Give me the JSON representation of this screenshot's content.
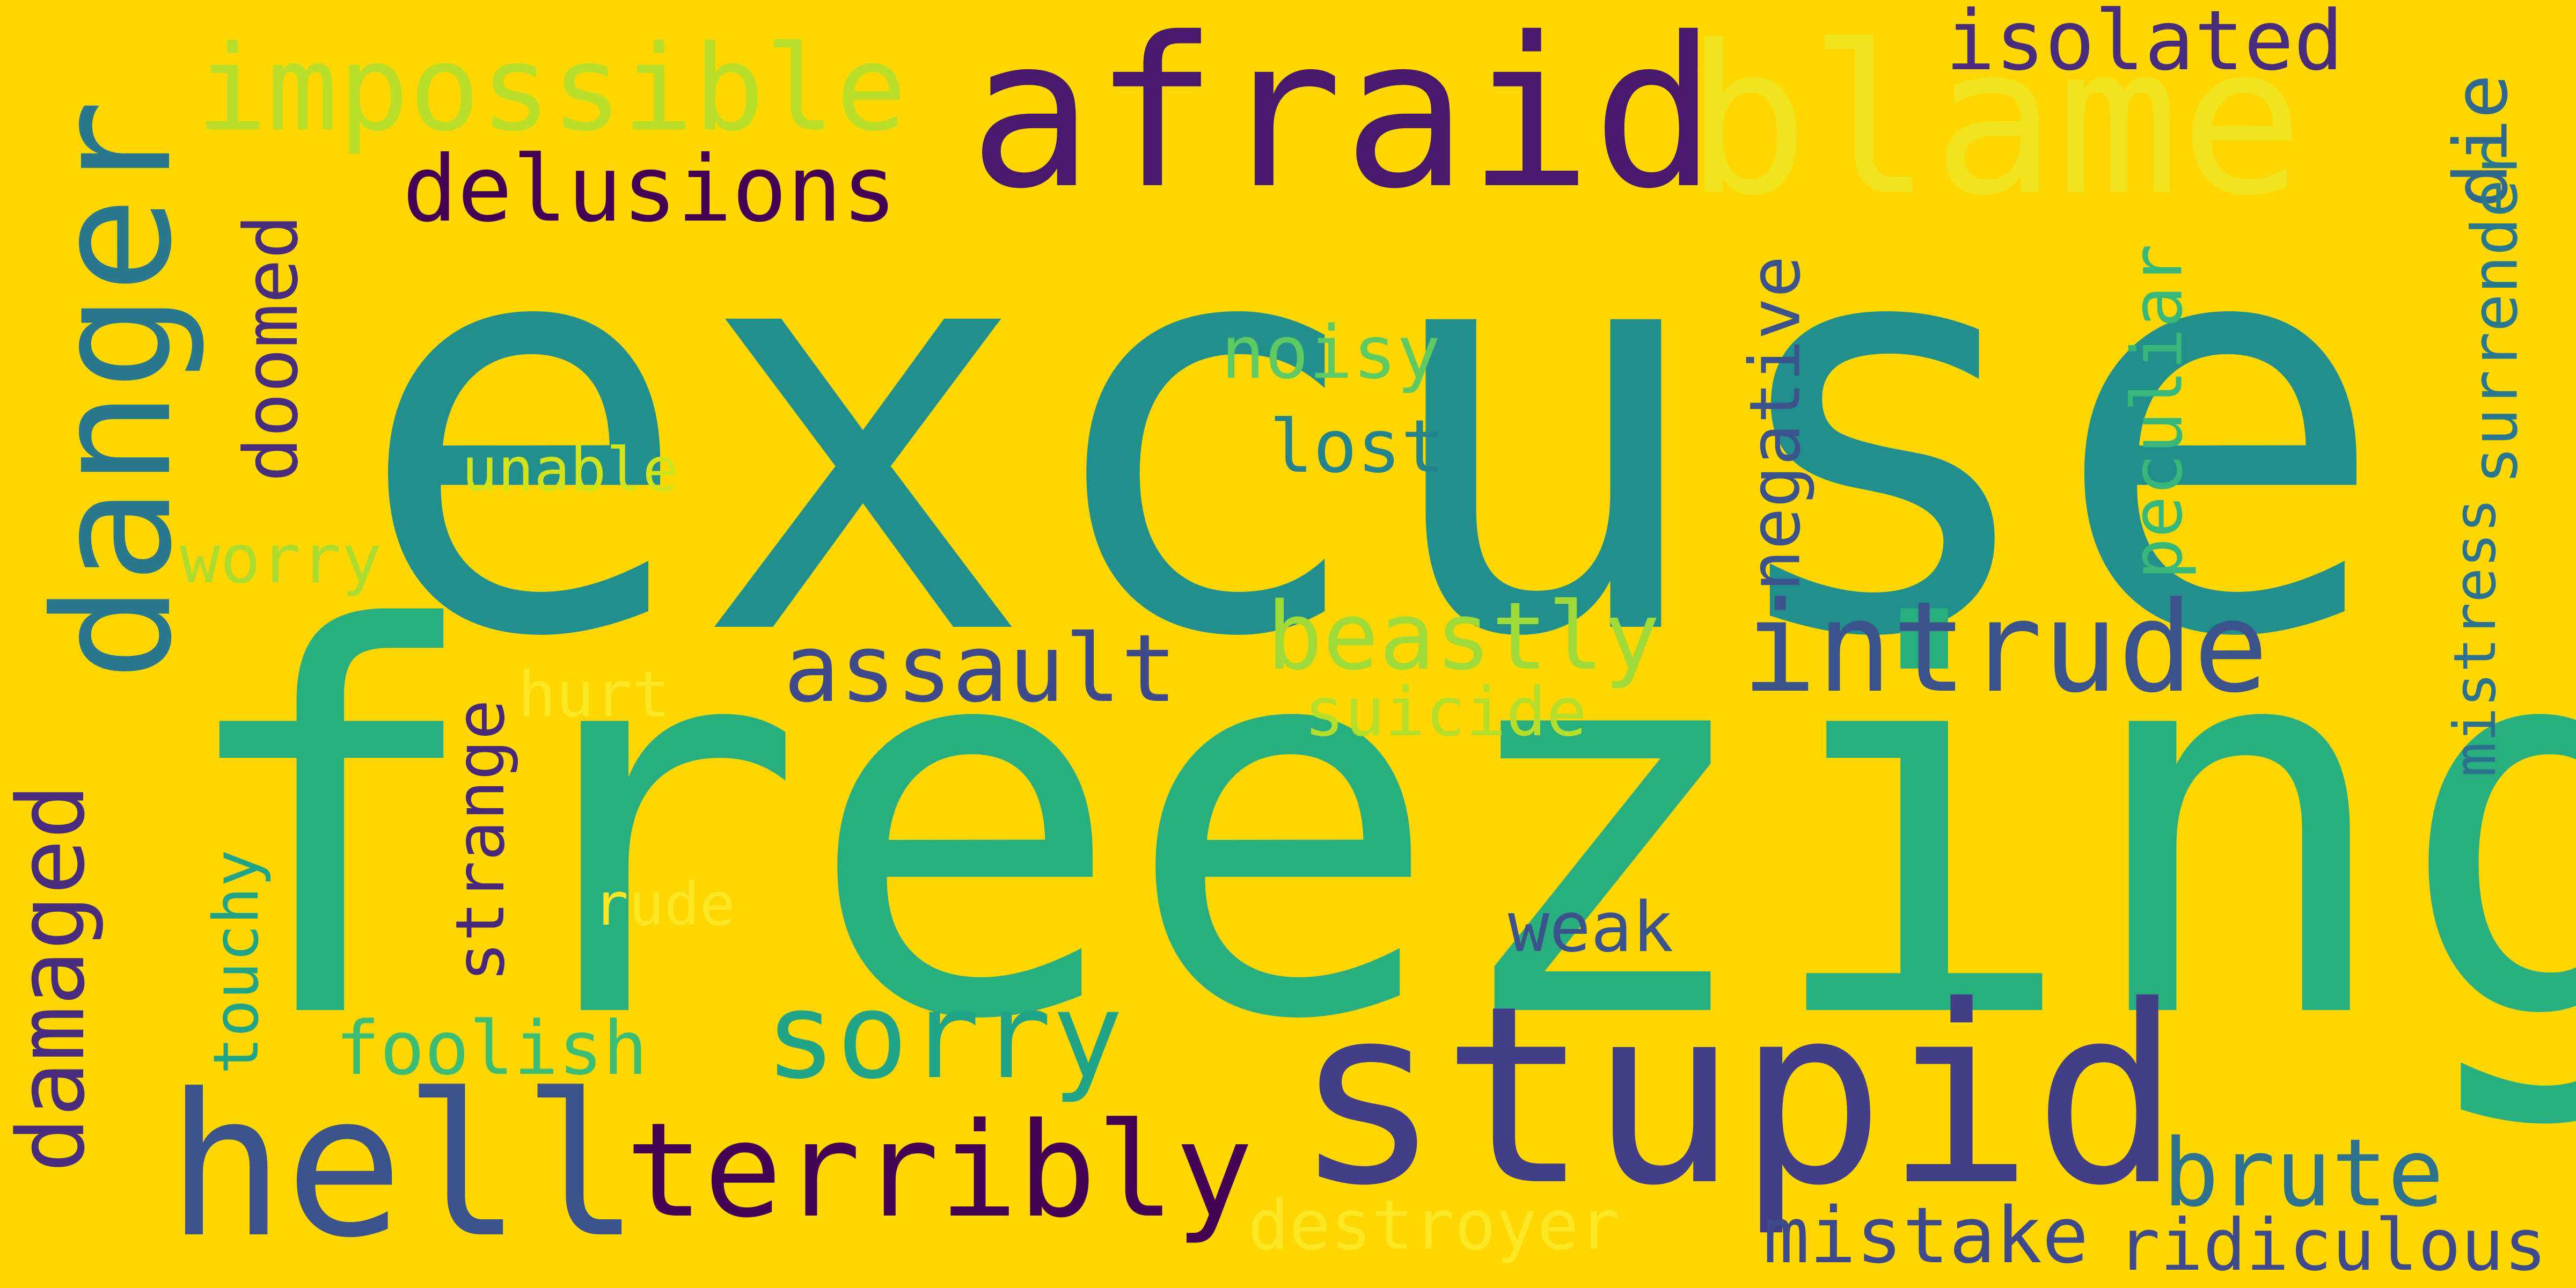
{
  "background_color": "#FFD700",
  "words": [
    {
      "id": "excuse",
      "text": "excuse",
      "color": "#21908d"
    },
    {
      "id": "freezing",
      "text": "freezing",
      "color": "#29af7f"
    },
    {
      "id": "stupid",
      "text": "stupid",
      "color": "#433e85"
    },
    {
      "id": "afraid",
      "text": "afraid",
      "color": "#481a6c"
    },
    {
      "id": "blame",
      "text": "blame",
      "color": "#f0e41e"
    },
    {
      "id": "impossible",
      "text": "impossible",
      "color": "#bade28"
    },
    {
      "id": "danger",
      "text": "danger",
      "color": "#2a788e"
    },
    {
      "id": "hell",
      "text": "hell",
      "color": "#3b528b"
    },
    {
      "id": "terribly",
      "text": "terribly",
      "color": "#440154"
    },
    {
      "id": "intrude",
      "text": "intrude",
      "color": "#3b528b"
    },
    {
      "id": "sorry",
      "text": "sorry",
      "color": "#20a386"
    },
    {
      "id": "delusions",
      "text": "delusions",
      "color": "#440154"
    },
    {
      "id": "isolated",
      "text": "isolated",
      "color": "#472d7b"
    },
    {
      "id": "assault",
      "text": "assault",
      "color": "#3e4a89"
    },
    {
      "id": "beastly",
      "text": "beastly",
      "color": "#a0da39"
    },
    {
      "id": "brute",
      "text": "brute",
      "color": "#2c728e"
    },
    {
      "id": "mistake",
      "text": "mistake",
      "color": "#3e4a89"
    },
    {
      "id": "ridiculous",
      "text": "ridiculous",
      "color": "#3e4a89"
    },
    {
      "id": "damaged",
      "text": "damaged",
      "color": "#472d7b"
    },
    {
      "id": "doomed",
      "text": "doomed",
      "color": "#472d7b"
    },
    {
      "id": "negative",
      "text": "negative",
      "color": "#3b528b"
    },
    {
      "id": "peculiar",
      "text": "peculiar",
      "color": "#37b878"
    },
    {
      "id": "die",
      "text": "die",
      "color": "#31688e"
    },
    {
      "id": "surrender",
      "text": "surrender",
      "color": "#2a788e"
    },
    {
      "id": "mistress",
      "text": "mistress",
      "color": "#2c728e"
    },
    {
      "id": "noisy",
      "text": "noisy",
      "color": "#5ec962"
    },
    {
      "id": "lost",
      "text": "lost",
      "color": "#25838e"
    },
    {
      "id": "unable",
      "text": "unable",
      "color": "#d2e21b"
    },
    {
      "id": "worry",
      "text": "worry",
      "color": "#addc30"
    },
    {
      "id": "hurt",
      "text": "hurt",
      "color": "#fde725"
    },
    {
      "id": "suicide",
      "text": "suicide",
      "color": "#b5de2b"
    },
    {
      "id": "strange",
      "text": "strange",
      "color": "#482878"
    },
    {
      "id": "touchy",
      "text": "touchy",
      "color": "#20a386"
    },
    {
      "id": "rude",
      "text": "rude",
      "color": "#fde725"
    },
    {
      "id": "weak",
      "text": "weak",
      "color": "#3b528b"
    },
    {
      "id": "foolish",
      "text": "foolish",
      "color": "#3dbc74"
    },
    {
      "id": "destroyer",
      "text": "destroyer",
      "color": "#fde725"
    }
  ]
}
